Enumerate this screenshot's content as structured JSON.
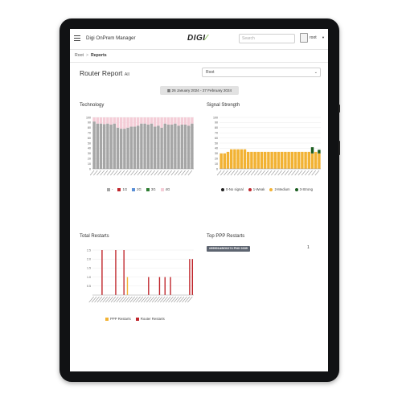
{
  "app": {
    "title": "Digi OnPrem Manager",
    "logo": "DIGI",
    "search_placeholder": "Search",
    "user": "root"
  },
  "breadcrumb": {
    "root": "Root",
    "current": "Reports"
  },
  "report": {
    "title": "Router Report",
    "title_suffix": "All",
    "select_value": "Root",
    "date_range": "26 January 2024 - 27 February 2024"
  },
  "colors": {
    "grey": "#a6a6a6",
    "pink": "#f4cdd7",
    "red": "#c0272d",
    "blue": "#5a8fd6",
    "green": "#2e7d32",
    "orange": "#f2b233",
    "dark": "#1b5e20"
  },
  "panels": {
    "technology": {
      "title": "Technology",
      "legend": [
        "-",
        "1G",
        "2G",
        "3G",
        "4G"
      ],
      "chart_data": {
        "type": "bar",
        "stacked": true,
        "ylim": [
          0,
          100
        ],
        "yticks": [
          "0",
          "10",
          "20",
          "30",
          "40",
          "50",
          "60",
          "70",
          "80",
          "90",
          "100"
        ],
        "series": [
          {
            "name": "-",
            "values": [
              92,
              88,
              88,
              87,
              88,
              86,
              88,
              80,
              78,
              78,
              80,
              82,
              82,
              84,
              88,
              88,
              86,
              88,
              82,
              84,
              80,
              88,
              86,
              86,
              88,
              84,
              86,
              86,
              84,
              88
            ]
          },
          {
            "name": "4G",
            "values": [
              8,
              12,
              12,
              13,
              12,
              14,
              12,
              20,
              22,
              22,
              20,
              18,
              18,
              16,
              12,
              12,
              14,
              12,
              18,
              16,
              20,
              12,
              14,
              14,
              12,
              16,
              14,
              14,
              16,
              12
            ]
          }
        ]
      }
    },
    "signal": {
      "title": "Signal Strength",
      "legend": [
        "0-No signal",
        "1-Weak",
        "2-Medium",
        "3-Strong"
      ],
      "chart_data": {
        "type": "bar",
        "stacked": true,
        "ylim": [
          0,
          100
        ],
        "yticks": [
          "0",
          "10",
          "20",
          "30",
          "40",
          "50",
          "60",
          "70",
          "80",
          "90",
          "100"
        ],
        "series": [
          {
            "name": "2-Medium",
            "values": [
              30,
              30,
              33,
              38,
              38,
              38,
              38,
              38,
              33,
              33,
              33,
              33,
              33,
              33,
              33,
              33,
              33,
              33,
              33,
              33,
              33,
              33,
              33,
              33,
              33,
              33,
              33,
              30,
              33,
              30
            ]
          },
          {
            "name": "3-Strong",
            "values": [
              0,
              0,
              0,
              0,
              0,
              0,
              0,
              0,
              0,
              0,
              0,
              0,
              0,
              0,
              0,
              0,
              0,
              0,
              0,
              0,
              0,
              0,
              0,
              0,
              0,
              0,
              0,
              12,
              0,
              7
            ]
          }
        ]
      }
    },
    "restarts": {
      "title": "Total Restarts",
      "legend": [
        "PPP Restarts",
        "Router Restarts"
      ],
      "chart_data": {
        "type": "bar",
        "ylim": [
          0,
          2.5
        ],
        "yticks": [
          "0.5",
          "1.0",
          "1.5",
          "2.0",
          "2.5"
        ],
        "series": [
          {
            "name": "Router Restarts",
            "values": [
              0,
              0,
              0,
              2.5,
              0,
              0,
              0,
              0,
              2.5,
              0,
              0,
              2.5,
              0,
              0,
              0,
              0,
              0,
              0,
              0,
              0,
              1,
              0,
              0,
              0,
              1,
              0,
              1,
              0,
              1,
              0,
              0,
              0,
              0,
              0,
              0,
              2,
              2
            ]
          },
          {
            "name": "PPP Restarts",
            "values": [
              0,
              0,
              0,
              0,
              0,
              0,
              0,
              0,
              0,
              0,
              0,
              0,
              1,
              0,
              0,
              0,
              0,
              0,
              0,
              0,
              0,
              0,
              0,
              0,
              0,
              0,
              0,
              0,
              0,
              0,
              0,
              0,
              0,
              0,
              0,
              0,
              0
            ]
          }
        ]
      }
    },
    "top_ppp": {
      "title": "Top PPP Restarts",
      "row_label": "#99901ABG0274 PNX 0339",
      "row_value": "1"
    }
  }
}
